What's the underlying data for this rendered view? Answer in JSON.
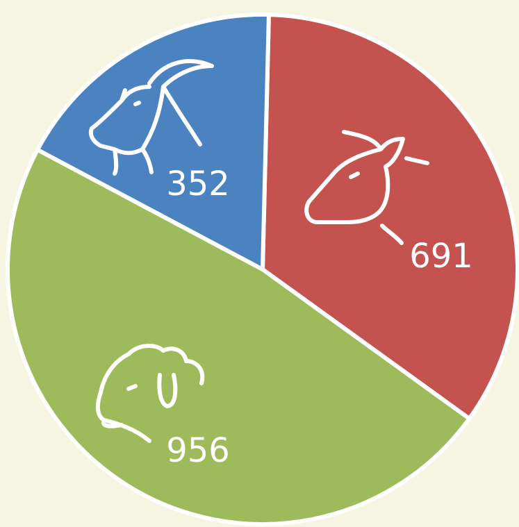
{
  "chart_data": {
    "type": "pie",
    "categories": [
      null,
      null,
      null
    ],
    "values": [
      691,
      956,
      352
    ],
    "colors": [
      "#c4524f",
      "#9dbb5a",
      "#4b82c0"
    ]
  }
}
